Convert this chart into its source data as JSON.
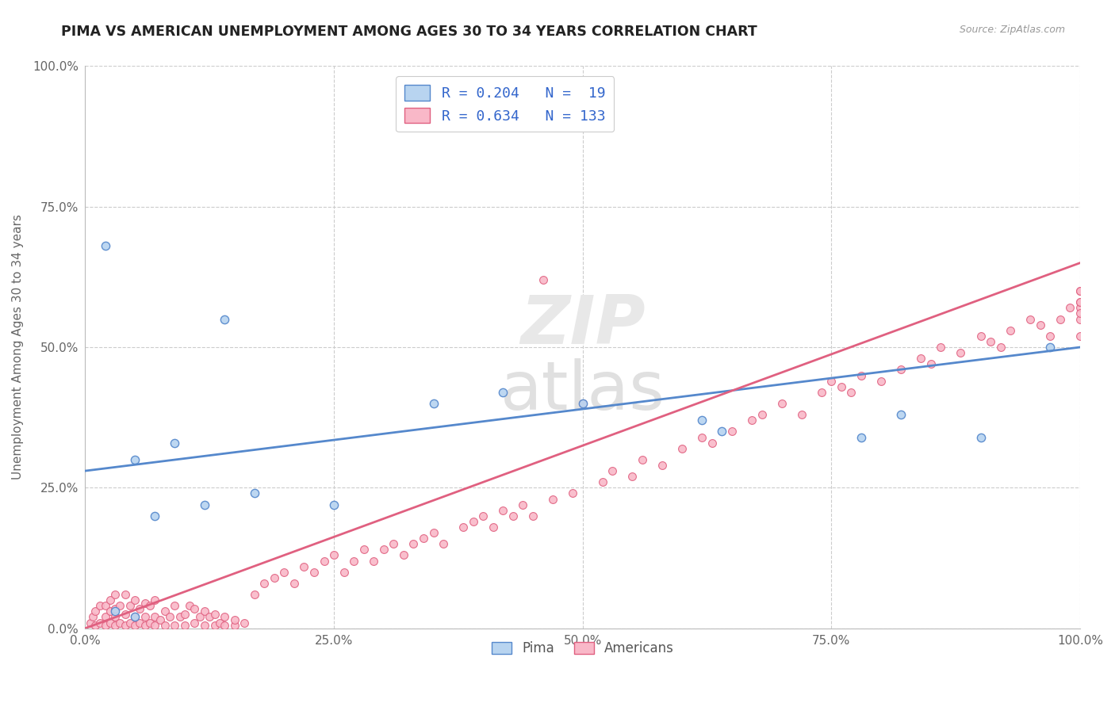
{
  "title": "PIMA VS AMERICAN UNEMPLOYMENT AMONG AGES 30 TO 34 YEARS CORRELATION CHART",
  "source": "Source: ZipAtlas.com",
  "ylabel": "Unemployment Among Ages 30 to 34 years",
  "xlim": [
    0,
    1
  ],
  "ylim": [
    0,
    1
  ],
  "xtick_labels": [
    "0.0%",
    "25.0%",
    "50.0%",
    "75.0%",
    "100.0%"
  ],
  "xtick_vals": [
    0.0,
    0.25,
    0.5,
    0.75,
    1.0
  ],
  "ytick_labels": [
    "0.0%",
    "25.0%",
    "50.0%",
    "75.0%",
    "100.0%"
  ],
  "ytick_vals": [
    0.0,
    0.25,
    0.5,
    0.75,
    1.0
  ],
  "pima_color": "#b8d4f0",
  "pima_edge_color": "#5588cc",
  "americans_color": "#f9b8c8",
  "americans_edge_color": "#e06080",
  "pima_line_color": "#5588cc",
  "americans_line_color": "#e06080",
  "legend_R_N_color": "#3366cc",
  "grid_color": "#cccccc",
  "background_color": "#ffffff",
  "pima_R": 0.204,
  "pima_N": 19,
  "americans_R": 0.634,
  "americans_N": 133,
  "pima_line_x0": 0.0,
  "pima_line_y0": 0.28,
  "pima_line_x1": 1.0,
  "pima_line_y1": 0.5,
  "am_line_x0": 0.0,
  "am_line_y0": 0.0,
  "am_line_x1": 1.0,
  "am_line_y1": 0.65,
  "pima_pts_x": [
    0.03,
    0.02,
    0.05,
    0.05,
    0.07,
    0.09,
    0.14,
    0.12,
    0.17,
    0.25,
    0.35,
    0.42,
    0.5,
    0.62,
    0.64,
    0.78,
    0.82,
    0.9,
    0.97
  ],
  "pima_pts_y": [
    0.03,
    0.68,
    0.02,
    0.3,
    0.2,
    0.33,
    0.55,
    0.22,
    0.24,
    0.22,
    0.4,
    0.42,
    0.4,
    0.37,
    0.35,
    0.34,
    0.38,
    0.34,
    0.5
  ],
  "am_cluster_x": [
    0.005,
    0.008,
    0.01,
    0.01,
    0.015,
    0.015,
    0.02,
    0.02,
    0.02,
    0.025,
    0.025,
    0.025,
    0.03,
    0.03,
    0.03,
    0.03,
    0.035,
    0.035,
    0.04,
    0.04,
    0.04,
    0.045,
    0.045,
    0.05,
    0.05,
    0.05,
    0.055,
    0.055,
    0.06,
    0.06,
    0.06,
    0.065,
    0.065,
    0.07,
    0.07,
    0.07,
    0.075,
    0.08,
    0.08,
    0.085,
    0.09,
    0.09,
    0.095,
    0.1,
    0.1,
    0.105,
    0.11,
    0.11,
    0.115,
    0.12,
    0.12,
    0.125,
    0.13,
    0.13,
    0.135,
    0.14,
    0.14,
    0.15,
    0.15,
    0.16
  ],
  "am_cluster_y": [
    0.01,
    0.02,
    0.005,
    0.03,
    0.01,
    0.04,
    0.005,
    0.02,
    0.04,
    0.01,
    0.03,
    0.05,
    0.005,
    0.02,
    0.035,
    0.06,
    0.01,
    0.04,
    0.005,
    0.025,
    0.06,
    0.01,
    0.04,
    0.005,
    0.02,
    0.05,
    0.01,
    0.035,
    0.005,
    0.02,
    0.045,
    0.01,
    0.04,
    0.005,
    0.02,
    0.05,
    0.015,
    0.005,
    0.03,
    0.02,
    0.005,
    0.04,
    0.02,
    0.005,
    0.025,
    0.04,
    0.01,
    0.035,
    0.02,
    0.005,
    0.03,
    0.02,
    0.005,
    0.025,
    0.01,
    0.005,
    0.02,
    0.005,
    0.015,
    0.01
  ],
  "am_spread_x": [
    0.17,
    0.18,
    0.19,
    0.2,
    0.21,
    0.22,
    0.23,
    0.24,
    0.25,
    0.26,
    0.27,
    0.28,
    0.29,
    0.3,
    0.31,
    0.32,
    0.33,
    0.34,
    0.35,
    0.36,
    0.38,
    0.39,
    0.4,
    0.41,
    0.42,
    0.43,
    0.44,
    0.45,
    0.46,
    0.47,
    0.49,
    0.5,
    0.52,
    0.53,
    0.55,
    0.56,
    0.58,
    0.6,
    0.62,
    0.63,
    0.65,
    0.67,
    0.68,
    0.7,
    0.72,
    0.74,
    0.75,
    0.76,
    0.77,
    0.78,
    0.8,
    0.82,
    0.84,
    0.85,
    0.86,
    0.88,
    0.9,
    0.91,
    0.92,
    0.93,
    0.95,
    0.96,
    0.97,
    0.98,
    0.99,
    1.0,
    1.0,
    1.0,
    1.0,
    1.0,
    1.0,
    1.0,
    1.0
  ],
  "am_spread_y": [
    0.06,
    0.08,
    0.09,
    0.1,
    0.08,
    0.11,
    0.1,
    0.12,
    0.13,
    0.1,
    0.12,
    0.14,
    0.12,
    0.14,
    0.15,
    0.13,
    0.15,
    0.16,
    0.17,
    0.15,
    0.18,
    0.19,
    0.2,
    0.18,
    0.21,
    0.2,
    0.22,
    0.2,
    0.62,
    0.23,
    0.24,
    0.4,
    0.26,
    0.28,
    0.27,
    0.3,
    0.29,
    0.32,
    0.34,
    0.33,
    0.35,
    0.37,
    0.38,
    0.4,
    0.38,
    0.42,
    0.44,
    0.43,
    0.42,
    0.45,
    0.44,
    0.46,
    0.48,
    0.47,
    0.5,
    0.49,
    0.52,
    0.51,
    0.5,
    0.53,
    0.55,
    0.54,
    0.52,
    0.55,
    0.57,
    0.55,
    0.57,
    0.6,
    0.58,
    0.6,
    0.56,
    0.58,
    0.52
  ]
}
